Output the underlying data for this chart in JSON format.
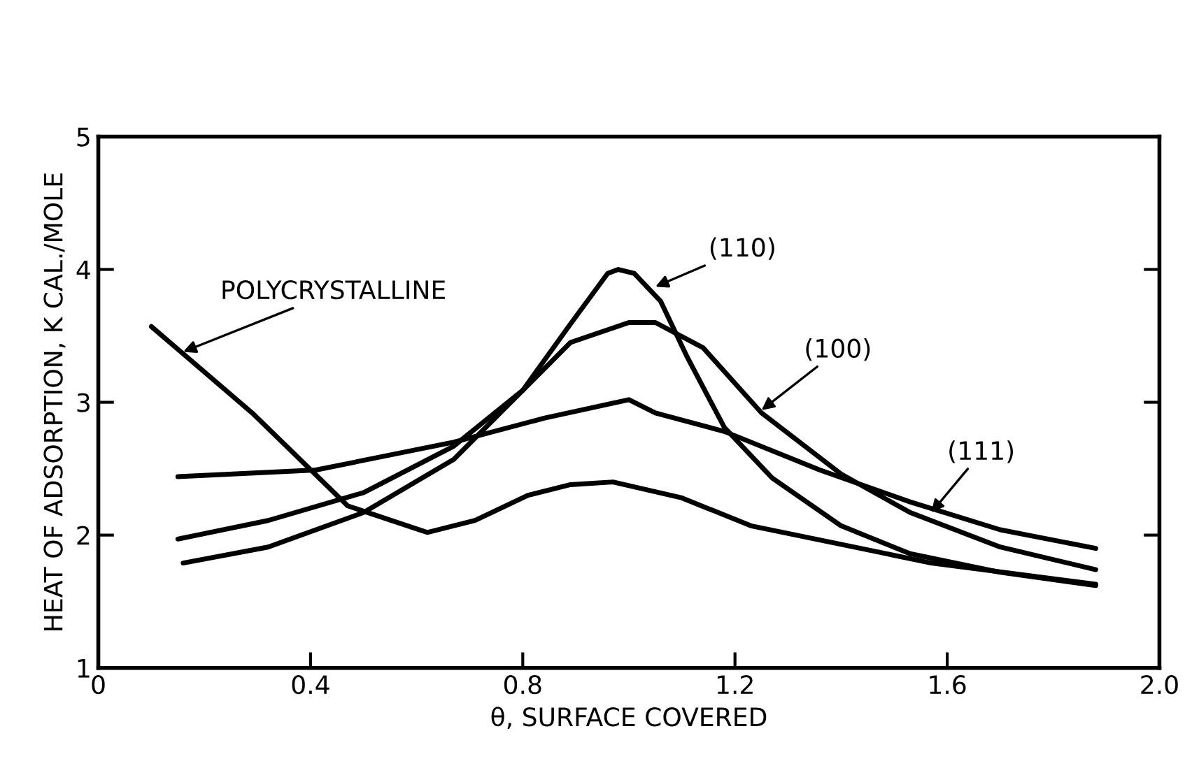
{
  "chart_data": {
    "type": "line",
    "xlabel": "θ, SURFACE COVERED",
    "ylabel": "HEAT OF ADSORPTION, K CAL./MOLE",
    "xlim": [
      0,
      2.0
    ],
    "xticks": [
      0,
      0.4,
      0.8,
      1.2,
      1.6,
      {
        "value": 2,
        "label": "2.0"
      }
    ],
    "ylim": [
      1,
      5
    ],
    "yticks": [
      1,
      2,
      3,
      4,
      5
    ],
    "grid": false,
    "legend": false,
    "marker": "none",
    "line_style": "solid",
    "series": [
      {
        "color": "#000000",
        "x": [
          0.1,
          0.29,
          0.47,
          0.62,
          0.71,
          0.81,
          0.89,
          0.97,
          1.1,
          1.23,
          1.4,
          1.57,
          1.88
        ],
        "values": [
          3.57,
          2.92,
          2.22,
          2.02,
          2.11,
          2.3,
          2.38,
          2.4,
          2.28,
          2.07,
          1.93,
          1.79,
          1.63
        ]
      },
      {
        "color": "#000000",
        "x": [
          0.16,
          0.32,
          0.5,
          0.67,
          0.8,
          0.89,
          0.96,
          0.98,
          1.01,
          1.06,
          1.11,
          1.18,
          1.27,
          1.4,
          1.53,
          1.7,
          1.88
        ],
        "values": [
          1.79,
          1.91,
          2.17,
          2.57,
          3.09,
          3.59,
          3.97,
          4.0,
          3.97,
          3.76,
          3.34,
          2.81,
          2.43,
          2.07,
          1.86,
          1.72,
          1.62
        ]
      },
      {
        "color": "#000000",
        "x": [
          0.15,
          0.32,
          0.5,
          0.67,
          0.8,
          0.89,
          1.0,
          1.05,
          1.14,
          1.25,
          1.4,
          1.53,
          1.7,
          1.88
        ],
        "values": [
          1.97,
          2.11,
          2.32,
          2.67,
          3.09,
          3.45,
          3.6,
          3.6,
          3.41,
          2.92,
          2.46,
          2.17,
          1.91,
          1.74
        ]
      },
      {
        "color": "#000000",
        "x": [
          0.15,
          0.41,
          0.67,
          0.84,
          1.0,
          1.05,
          1.18,
          1.36,
          1.53,
          1.7,
          1.88
        ],
        "values": [
          2.44,
          2.49,
          2.7,
          2.88,
          3.02,
          2.92,
          2.78,
          2.49,
          2.25,
          2.04,
          1.9
        ]
      }
    ],
    "annotations": [
      {
        "text": "POLYCRYSTALLINE",
        "x": 0.16,
        "y": 3.38
      },
      {
        "text": "(110)",
        "x": 1.05,
        "y": 3.87
      },
      {
        "text": "(100)",
        "x": 1.25,
        "y": 2.94
      },
      {
        "text": "(111)",
        "x": 1.57,
        "y": 2.17
      }
    ]
  }
}
